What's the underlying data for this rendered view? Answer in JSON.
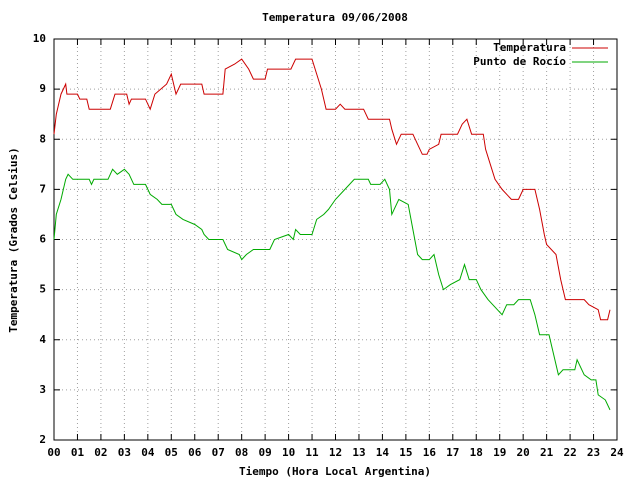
{
  "chart_data": {
    "type": "line",
    "title": "Temperatura 09/06/2008",
    "x_label": "Tiempo (Hora Local Argentina)",
    "y_label": "Temperatura (Grados Celsius)",
    "xlim": [
      0,
      24
    ],
    "ylim": [
      2,
      10
    ],
    "xticks": [
      {
        "value": 0,
        "label": "00"
      },
      {
        "value": 1,
        "label": "01"
      },
      {
        "value": 2,
        "label": "02"
      },
      {
        "value": 3,
        "label": "03"
      },
      {
        "value": 4,
        "label": "04"
      },
      {
        "value": 5,
        "label": "05"
      },
      {
        "value": 6,
        "label": "06"
      },
      {
        "value": 7,
        "label": "07"
      },
      {
        "value": 8,
        "label": "08"
      },
      {
        "value": 9,
        "label": "09"
      },
      10,
      11,
      12,
      13,
      14,
      15,
      16,
      17,
      18,
      19,
      20,
      21,
      22,
      23,
      24
    ],
    "yticks": [
      2,
      3,
      4,
      5,
      6,
      7,
      8,
      9,
      10
    ],
    "grid": true,
    "legend": "top-right",
    "series": [
      {
        "name": "Temperatura",
        "color": "#cc0000",
        "x": [
          0,
          0.1,
          0.3,
          0.5,
          0.55,
          1.0,
          1.1,
          1.4,
          1.5,
          2.4,
          2.6,
          3.1,
          3.2,
          3.3,
          3.9,
          4.1,
          4.3,
          4.8,
          5.0,
          5.2,
          5.4,
          6.3,
          6.4,
          7.2,
          7.3,
          7.7,
          8.0,
          8.3,
          8.5,
          9.0,
          9.1,
          10.1,
          10.3,
          11.0,
          11.2,
          11.4,
          11.6,
          12.0,
          12.2,
          12.4,
          13.2,
          13.4,
          14.3,
          14.4,
          14.6,
          14.8,
          15.3,
          15.5,
          15.7,
          15.9,
          16.0,
          16.4,
          16.5,
          17.2,
          17.4,
          17.6,
          17.8,
          18.3,
          18.4,
          18.6,
          18.8,
          19.1,
          19.5,
          19.8,
          20.0,
          20.5,
          20.7,
          20.9,
          21.0,
          21.4,
          21.6,
          21.8,
          22.6,
          22.8,
          23.2,
          23.3,
          23.6,
          23.7
        ],
        "values": [
          8.1,
          8.5,
          8.9,
          9.1,
          8.9,
          8.9,
          8.8,
          8.8,
          8.6,
          8.6,
          8.9,
          8.9,
          8.7,
          8.8,
          8.8,
          8.6,
          8.9,
          9.1,
          9.3,
          8.9,
          9.1,
          9.1,
          8.9,
          8.9,
          9.4,
          9.5,
          9.6,
          9.4,
          9.2,
          9.2,
          9.4,
          9.4,
          9.6,
          9.6,
          9.3,
          9.0,
          8.6,
          8.6,
          8.7,
          8.6,
          8.6,
          8.4,
          8.4,
          8.2,
          7.9,
          8.1,
          8.1,
          7.9,
          7.7,
          7.7,
          7.8,
          7.9,
          8.1,
          8.1,
          8.3,
          8.4,
          8.1,
          8.1,
          7.8,
          7.5,
          7.2,
          7.0,
          6.8,
          6.8,
          7.0,
          7.0,
          6.6,
          6.1,
          5.9,
          5.7,
          5.2,
          4.8,
          4.8,
          4.7,
          4.6,
          4.4,
          4.4,
          4.6
        ]
      },
      {
        "name": "Punto de Rocío",
        "color": "#00aa00",
        "x": [
          0,
          0.1,
          0.3,
          0.5,
          0.6,
          0.8,
          1.5,
          1.6,
          1.7,
          2.3,
          2.5,
          2.7,
          3.0,
          3.2,
          3.4,
          3.9,
          4.1,
          4.4,
          4.6,
          5.0,
          5.2,
          5.5,
          6.0,
          6.3,
          6.4,
          6.6,
          7.2,
          7.4,
          7.9,
          8.0,
          8.2,
          8.5,
          9.2,
          9.4,
          10.0,
          10.2,
          10.3,
          10.5,
          11.0,
          11.2,
          11.5,
          11.7,
          12.0,
          12.4,
          12.8,
          13.4,
          13.5,
          13.9,
          14.1,
          14.3,
          14.4,
          14.5,
          14.7,
          15.1,
          15.3,
          15.5,
          15.7,
          16.0,
          16.2,
          16.4,
          16.6,
          16.9,
          17.3,
          17.5,
          17.7,
          18.0,
          18.2,
          18.5,
          18.9,
          19.1,
          19.3,
          19.6,
          19.8,
          20.3,
          20.5,
          20.7,
          21.1,
          21.3,
          21.5,
          21.7,
          22.0,
          22.2,
          22.3,
          22.6,
          22.9,
          23.1,
          23.2,
          23.5,
          23.7
        ],
        "values": [
          6.0,
          6.5,
          6.8,
          7.2,
          7.3,
          7.2,
          7.2,
          7.1,
          7.2,
          7.2,
          7.4,
          7.3,
          7.4,
          7.3,
          7.1,
          7.1,
          6.9,
          6.8,
          6.7,
          6.7,
          6.5,
          6.4,
          6.3,
          6.2,
          6.1,
          6.0,
          6.0,
          5.8,
          5.7,
          5.6,
          5.7,
          5.8,
          5.8,
          6.0,
          6.1,
          6.0,
          6.2,
          6.1,
          6.1,
          6.4,
          6.5,
          6.6,
          6.8,
          7.0,
          7.2,
          7.2,
          7.1,
          7.1,
          7.2,
          7.0,
          6.5,
          6.6,
          6.8,
          6.7,
          6.2,
          5.7,
          5.6,
          5.6,
          5.7,
          5.3,
          5.0,
          5.1,
          5.2,
          5.5,
          5.2,
          5.2,
          5.0,
          4.8,
          4.6,
          4.5,
          4.7,
          4.7,
          4.8,
          4.8,
          4.5,
          4.1,
          4.1,
          3.7,
          3.3,
          3.4,
          3.4,
          3.4,
          3.6,
          3.3,
          3.2,
          3.2,
          2.9,
          2.8,
          2.6
        ]
      }
    ]
  }
}
